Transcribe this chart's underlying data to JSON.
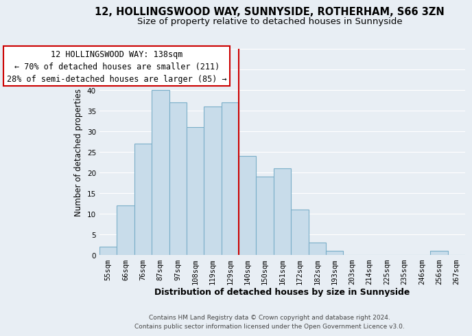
{
  "title": "12, HOLLINGSWOOD WAY, SUNNYSIDE, ROTHERHAM, S66 3ZN",
  "subtitle": "Size of property relative to detached houses in Sunnyside",
  "xlabel": "Distribution of detached houses by size in Sunnyside",
  "ylabel": "Number of detached properties",
  "bar_labels": [
    "55sqm",
    "66sqm",
    "76sqm",
    "87sqm",
    "97sqm",
    "108sqm",
    "119sqm",
    "129sqm",
    "140sqm",
    "150sqm",
    "161sqm",
    "172sqm",
    "182sqm",
    "193sqm",
    "203sqm",
    "214sqm",
    "225sqm",
    "235sqm",
    "246sqm",
    "256sqm",
    "267sqm"
  ],
  "bar_heights": [
    2,
    12,
    27,
    40,
    37,
    31,
    36,
    37,
    24,
    19,
    21,
    11,
    3,
    1,
    0,
    0,
    0,
    0,
    0,
    1,
    0
  ],
  "bar_color": "#c8dcea",
  "bar_edge_color": "#7aaec8",
  "vline_color": "#cc0000",
  "vline_index": 8,
  "ylim": [
    0,
    50
  ],
  "yticks": [
    0,
    5,
    10,
    15,
    20,
    25,
    30,
    35,
    40,
    45,
    50
  ],
  "annotation_title": "12 HOLLINGSWOOD WAY: 138sqm",
  "annotation_line1": "← 70% of detached houses are smaller (211)",
  "annotation_line2": "28% of semi-detached houses are larger (85) →",
  "annotation_box_facecolor": "#ffffff",
  "annotation_box_edgecolor": "#cc0000",
  "footer1": "Contains HM Land Registry data © Crown copyright and database right 2024.",
  "footer2": "Contains public sector information licensed under the Open Government Licence v3.0.",
  "background_color": "#e8eef4",
  "grid_color": "#ffffff",
  "title_fontsize": 10.5,
  "subtitle_fontsize": 9.5,
  "axis_label_fontsize": 9,
  "tick_fontsize": 7.5,
  "ylabel_fontsize": 8.5,
  "annotation_fontsize": 8.5,
  "footer_fontsize": 6.5
}
